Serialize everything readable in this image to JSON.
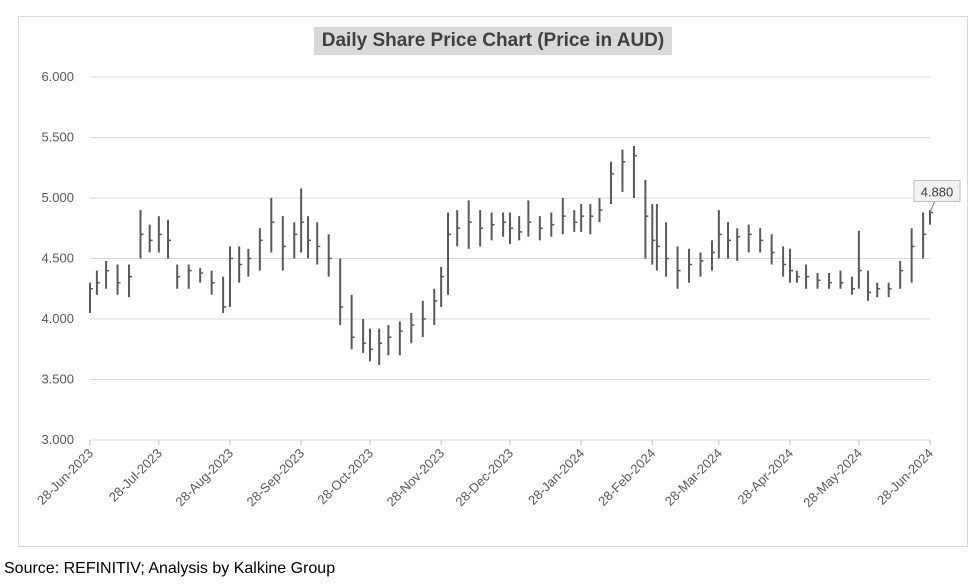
{
  "chart_data": {
    "type": "line",
    "style": "ohlc-bars",
    "title": "Daily Share Price Chart (Price in AUD)",
    "xlabel": "",
    "ylabel": "",
    "ylim": [
      3.0,
      6.0
    ],
    "y_ticks": [
      "3.000",
      "3.500",
      "4.000",
      "4.500",
      "5.000",
      "5.500",
      "6.000"
    ],
    "x_range": [
      "2023-06-28",
      "2024-06-28"
    ],
    "x_ticks": [
      {
        "date": "2023-06-28",
        "label": "28-Jun-2023"
      },
      {
        "date": "2023-07-28",
        "label": "28-Jul-2023"
      },
      {
        "date": "2023-08-28",
        "label": "28-Aug-2023"
      },
      {
        "date": "2023-09-28",
        "label": "28-Sep-2023"
      },
      {
        "date": "2023-10-28",
        "label": "28-Oct-2023"
      },
      {
        "date": "2023-11-28",
        "label": "28-Nov-2023"
      },
      {
        "date": "2023-12-28",
        "label": "28-Dec-2023"
      },
      {
        "date": "2024-01-28",
        "label": "28-Jan-2024"
      },
      {
        "date": "2024-02-28",
        "label": "28-Feb-2024"
      },
      {
        "date": "2024-03-28",
        "label": "28-Mar-2024"
      },
      {
        "date": "2024-04-28",
        "label": "28-Apr-2024"
      },
      {
        "date": "2024-05-28",
        "label": "28-May-2024"
      },
      {
        "date": "2024-06-28",
        "label": "28-Jun-2024"
      }
    ],
    "grid": true,
    "legend": "none",
    "bar_color": "#595959",
    "grid_color": "#d9d9d9",
    "series": [
      {
        "x": [
          "2023-06-28",
          "2023-07-01",
          "2023-07-05",
          "2023-07-10",
          "2023-07-15",
          "2023-07-20",
          "2023-07-24",
          "2023-07-28",
          "2023-08-01",
          "2023-08-05",
          "2023-08-10",
          "2023-08-15",
          "2023-08-20",
          "2023-08-25",
          "2023-08-28",
          "2023-09-01",
          "2023-09-05",
          "2023-09-10",
          "2023-09-15",
          "2023-09-20",
          "2023-09-25",
          "2023-09-28",
          "2023-10-01",
          "2023-10-05",
          "2023-10-10",
          "2023-10-15",
          "2023-10-20",
          "2023-10-25",
          "2023-10-28",
          "2023-11-01",
          "2023-11-05",
          "2023-11-10",
          "2023-11-15",
          "2023-11-20",
          "2023-11-25",
          "2023-11-28",
          "2023-12-01",
          "2023-12-05",
          "2023-12-10",
          "2023-12-15",
          "2023-12-20",
          "2023-12-25",
          "2023-12-28",
          "2024-01-01",
          "2024-01-05",
          "2024-01-10",
          "2024-01-15",
          "2024-01-20",
          "2024-01-25",
          "2024-01-28",
          "2024-02-01",
          "2024-02-05",
          "2024-02-10",
          "2024-02-15",
          "2024-02-20",
          "2024-02-25",
          "2024-02-28",
          "2024-03-01",
          "2024-03-05",
          "2024-03-10",
          "2024-03-15",
          "2024-03-20",
          "2024-03-25",
          "2024-03-28",
          "2024-04-01",
          "2024-04-05",
          "2024-04-10",
          "2024-04-15",
          "2024-04-20",
          "2024-04-25",
          "2024-04-28",
          "2024-05-01",
          "2024-05-05",
          "2024-05-10",
          "2024-05-15",
          "2024-05-20",
          "2024-05-25",
          "2024-05-28",
          "2024-06-01",
          "2024-06-05",
          "2024-06-10",
          "2024-06-15",
          "2024-06-20",
          "2024-06-25",
          "2024-06-28"
        ],
        "high": [
          4.3,
          4.4,
          4.48,
          4.45,
          4.45,
          4.9,
          4.78,
          4.85,
          4.82,
          4.45,
          4.45,
          4.42,
          4.4,
          4.35,
          4.6,
          4.6,
          4.58,
          4.75,
          5.0,
          4.85,
          4.8,
          5.08,
          4.85,
          4.8,
          4.7,
          4.5,
          4.2,
          4.0,
          3.92,
          3.92,
          3.95,
          3.98,
          4.05,
          4.15,
          4.25,
          4.43,
          4.88,
          4.9,
          4.98,
          4.9,
          4.88,
          4.88,
          4.88,
          4.85,
          4.98,
          4.85,
          4.88,
          5.0,
          4.9,
          4.95,
          4.95,
          5.0,
          5.3,
          5.4,
          5.43,
          5.15,
          4.95,
          4.95,
          4.8,
          4.6,
          4.58,
          4.55,
          4.65,
          4.9,
          4.8,
          4.75,
          4.78,
          4.75,
          4.7,
          4.6,
          4.58,
          4.4,
          4.45,
          4.38,
          4.38,
          4.4,
          4.35,
          4.73,
          4.4,
          4.3,
          4.3,
          4.48,
          4.75,
          4.88,
          4.9
        ],
        "low": [
          4.05,
          4.2,
          4.25,
          4.2,
          4.18,
          4.5,
          4.55,
          4.55,
          4.5,
          4.25,
          4.25,
          4.3,
          4.2,
          4.05,
          4.1,
          4.3,
          4.35,
          4.4,
          4.55,
          4.4,
          4.5,
          4.55,
          4.5,
          4.45,
          4.35,
          3.95,
          3.75,
          3.72,
          3.65,
          3.62,
          3.7,
          3.7,
          3.8,
          3.85,
          3.95,
          4.1,
          4.2,
          4.6,
          4.58,
          4.6,
          4.65,
          4.68,
          4.62,
          4.65,
          4.68,
          4.65,
          4.68,
          4.7,
          4.72,
          4.72,
          4.7,
          4.8,
          4.95,
          5.05,
          5.0,
          4.5,
          4.45,
          4.4,
          4.35,
          4.25,
          4.3,
          4.35,
          4.4,
          4.5,
          4.5,
          4.48,
          4.55,
          4.55,
          4.45,
          4.35,
          4.3,
          4.3,
          4.25,
          4.25,
          4.25,
          4.25,
          4.2,
          4.25,
          4.15,
          4.18,
          4.18,
          4.25,
          4.3,
          4.5,
          4.78
        ],
        "close": [
          4.25,
          4.3,
          4.4,
          4.3,
          4.35,
          4.7,
          4.65,
          4.7,
          4.65,
          4.35,
          4.4,
          4.38,
          4.3,
          4.1,
          4.5,
          4.45,
          4.5,
          4.65,
          4.8,
          4.6,
          4.7,
          4.8,
          4.65,
          4.6,
          4.5,
          4.1,
          3.85,
          3.8,
          3.75,
          3.8,
          3.85,
          3.9,
          3.95,
          4.0,
          4.15,
          4.35,
          4.7,
          4.75,
          4.8,
          4.75,
          4.78,
          4.8,
          4.75,
          4.72,
          4.8,
          4.75,
          4.78,
          4.85,
          4.8,
          4.85,
          4.85,
          4.9,
          5.2,
          5.3,
          5.35,
          4.85,
          4.65,
          4.6,
          4.5,
          4.4,
          4.45,
          4.48,
          4.55,
          4.7,
          4.65,
          4.68,
          4.7,
          4.65,
          4.55,
          4.45,
          4.4,
          4.35,
          4.35,
          4.32,
          4.3,
          4.3,
          4.25,
          4.4,
          4.22,
          4.25,
          4.25,
          4.4,
          4.6,
          4.7,
          4.88
        ]
      }
    ],
    "annotations": [
      {
        "date": "2024-06-28",
        "value": 4.88,
        "text": "4.880"
      }
    ]
  },
  "source_note": "Source: REFINITIV; Analysis by Kalkine Group"
}
